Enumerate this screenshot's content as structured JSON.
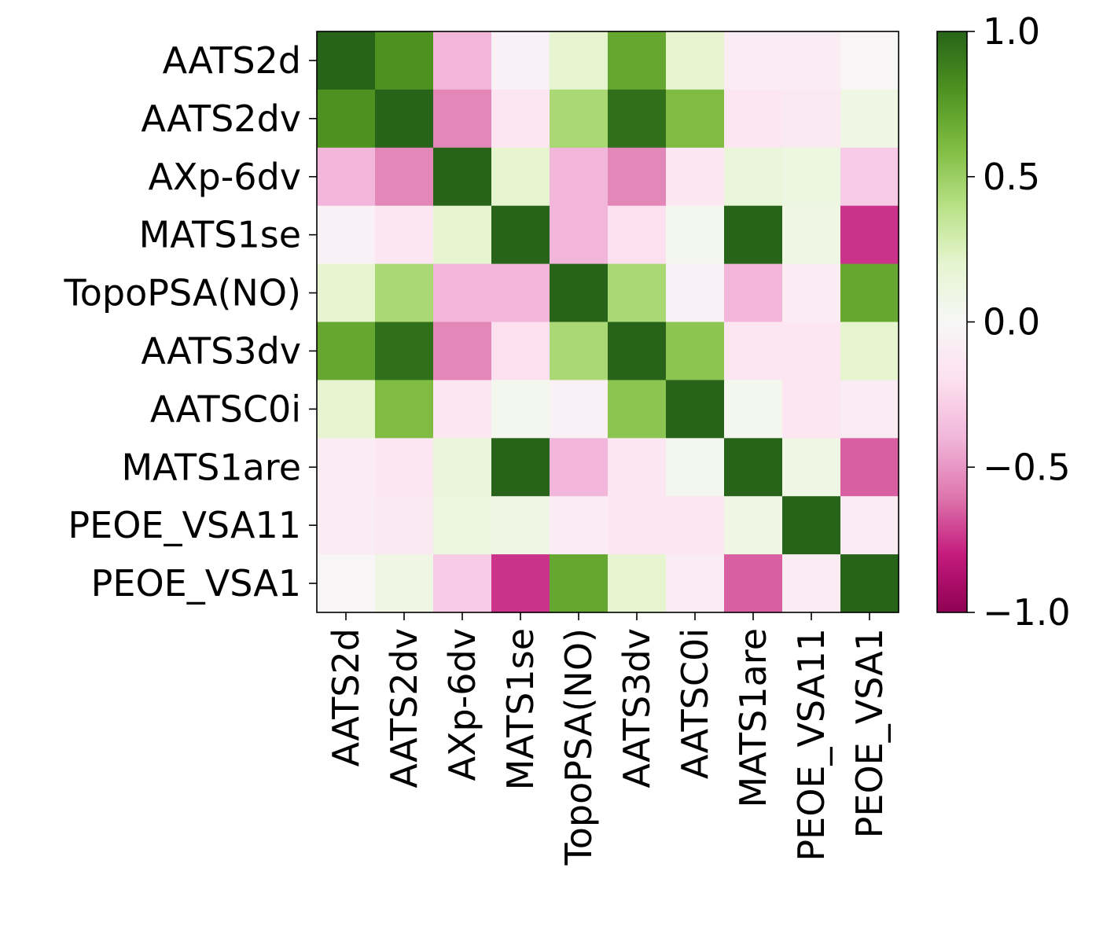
{
  "chart_data": {
    "type": "heatmap",
    "title": "",
    "xlabel": "",
    "ylabel": "",
    "grid": false,
    "colormap": "PiYG",
    "x_categories": [
      "AATS2d",
      "AATS2dv",
      "AXp-6dv",
      "MATS1se",
      "TopoPSA(NO)",
      "AATS3dv",
      "AATSC0i",
      "MATS1are",
      "PEOE_VSA11",
      "PEOE_VSA1"
    ],
    "y_categories": [
      "AATS2d",
      "AATS2dv",
      "AXp-6dv",
      "MATS1se",
      "TopoPSA(NO)",
      "AATS3dv",
      "AATSC0i",
      "MATS1are",
      "PEOE_VSA11",
      "PEOE_VSA1"
    ],
    "values": [
      [
        1.0,
        0.8,
        -0.4,
        -0.05,
        0.2,
        0.7,
        0.2,
        -0.1,
        -0.1,
        -0.02
      ],
      [
        0.8,
        1.0,
        -0.55,
        -0.15,
        0.45,
        0.95,
        0.6,
        -0.15,
        -0.12,
        0.1
      ],
      [
        -0.4,
        -0.55,
        1.0,
        0.2,
        -0.4,
        -0.55,
        -0.15,
        0.15,
        0.12,
        -0.3
      ],
      [
        -0.05,
        -0.15,
        0.2,
        1.0,
        -0.4,
        -0.2,
        0.05,
        1.0,
        0.1,
        -0.75
      ],
      [
        0.2,
        0.45,
        -0.4,
        -0.4,
        1.0,
        0.45,
        -0.05,
        -0.4,
        -0.1,
        0.7
      ],
      [
        0.7,
        0.95,
        -0.55,
        -0.2,
        0.45,
        1.0,
        0.55,
        -0.15,
        -0.15,
        0.2
      ],
      [
        0.2,
        0.6,
        -0.15,
        0.05,
        -0.05,
        0.55,
        1.0,
        0.05,
        -0.15,
        -0.1
      ],
      [
        -0.1,
        -0.15,
        0.15,
        1.0,
        -0.4,
        -0.15,
        0.05,
        1.0,
        0.1,
        -0.65
      ],
      [
        -0.1,
        -0.12,
        0.12,
        0.1,
        -0.1,
        -0.15,
        -0.15,
        0.1,
        1.0,
        -0.1
      ],
      [
        -0.02,
        0.1,
        -0.3,
        -0.75,
        0.7,
        0.2,
        -0.1,
        -0.65,
        -0.1,
        1.0
      ]
    ],
    "colorbar": {
      "range": [
        -1.0,
        1.0
      ],
      "ticks": [
        1.0,
        0.5,
        0.0,
        -0.5,
        -1.0
      ],
      "tick_labels": [
        "1.0",
        "0.5",
        "0.0",
        "−0.5",
        "−1.0"
      ]
    }
  }
}
